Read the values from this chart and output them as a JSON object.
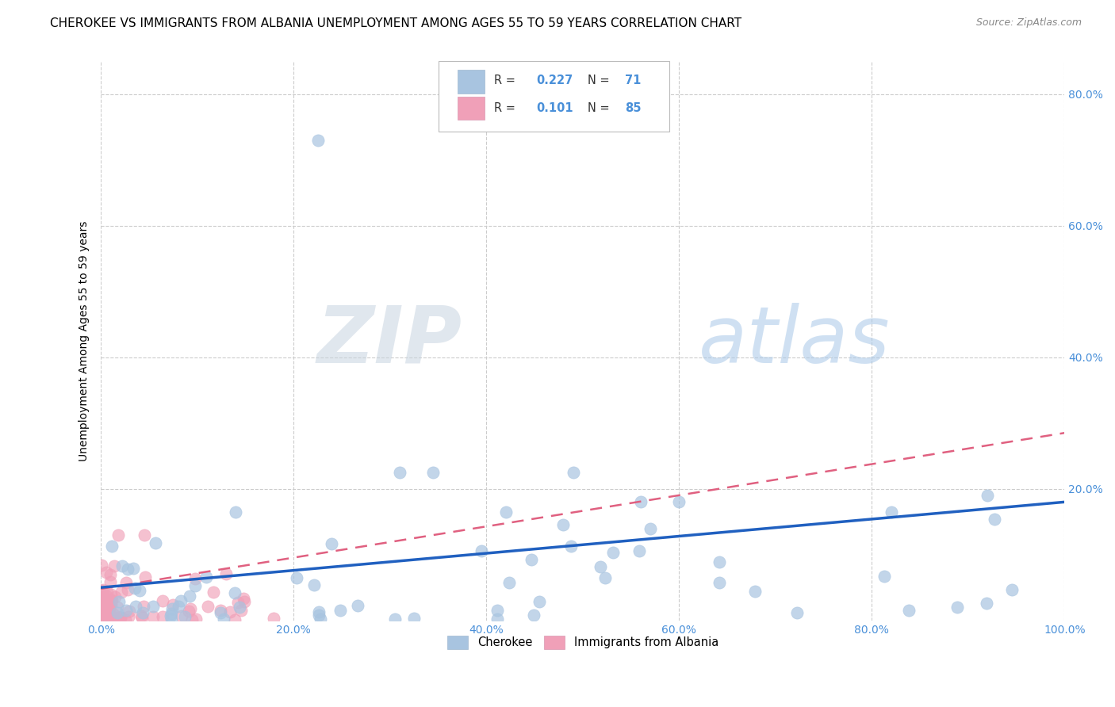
{
  "title": "CHEROKEE VS IMMIGRANTS FROM ALBANIA UNEMPLOYMENT AMONG AGES 55 TO 59 YEARS CORRELATION CHART",
  "source": "Source: ZipAtlas.com",
  "ylabel": "Unemployment Among Ages 55 to 59 years",
  "xlim": [
    0.0,
    1.0
  ],
  "ylim": [
    0.0,
    0.85
  ],
  "xticks": [
    0.0,
    0.2,
    0.4,
    0.6,
    0.8,
    1.0
  ],
  "xticklabels": [
    "0.0%",
    "20.0%",
    "40.0%",
    "60.0%",
    "80.0%",
    "100.0%"
  ],
  "yticks": [
    0.2,
    0.4,
    0.6,
    0.8
  ],
  "yticklabels": [
    "20.0%",
    "40.0%",
    "60.0%",
    "80.0%"
  ],
  "grid_color": "#cccccc",
  "background_color": "#ffffff",
  "watermark_zip": "ZIP",
  "watermark_atlas": "atlas",
  "cherokee_color": "#a8c4e0",
  "albania_color": "#f0a0b8",
  "cherokee_line_color": "#2060c0",
  "albania_line_color": "#e06080",
  "title_fontsize": 11,
  "label_fontsize": 10,
  "tick_fontsize": 10,
  "tick_color": "#4a90d9",
  "cherokee_line_y0": 0.05,
  "cherokee_line_y1": 0.18,
  "albania_line_y0": 0.048,
  "albania_line_y1": 0.285
}
